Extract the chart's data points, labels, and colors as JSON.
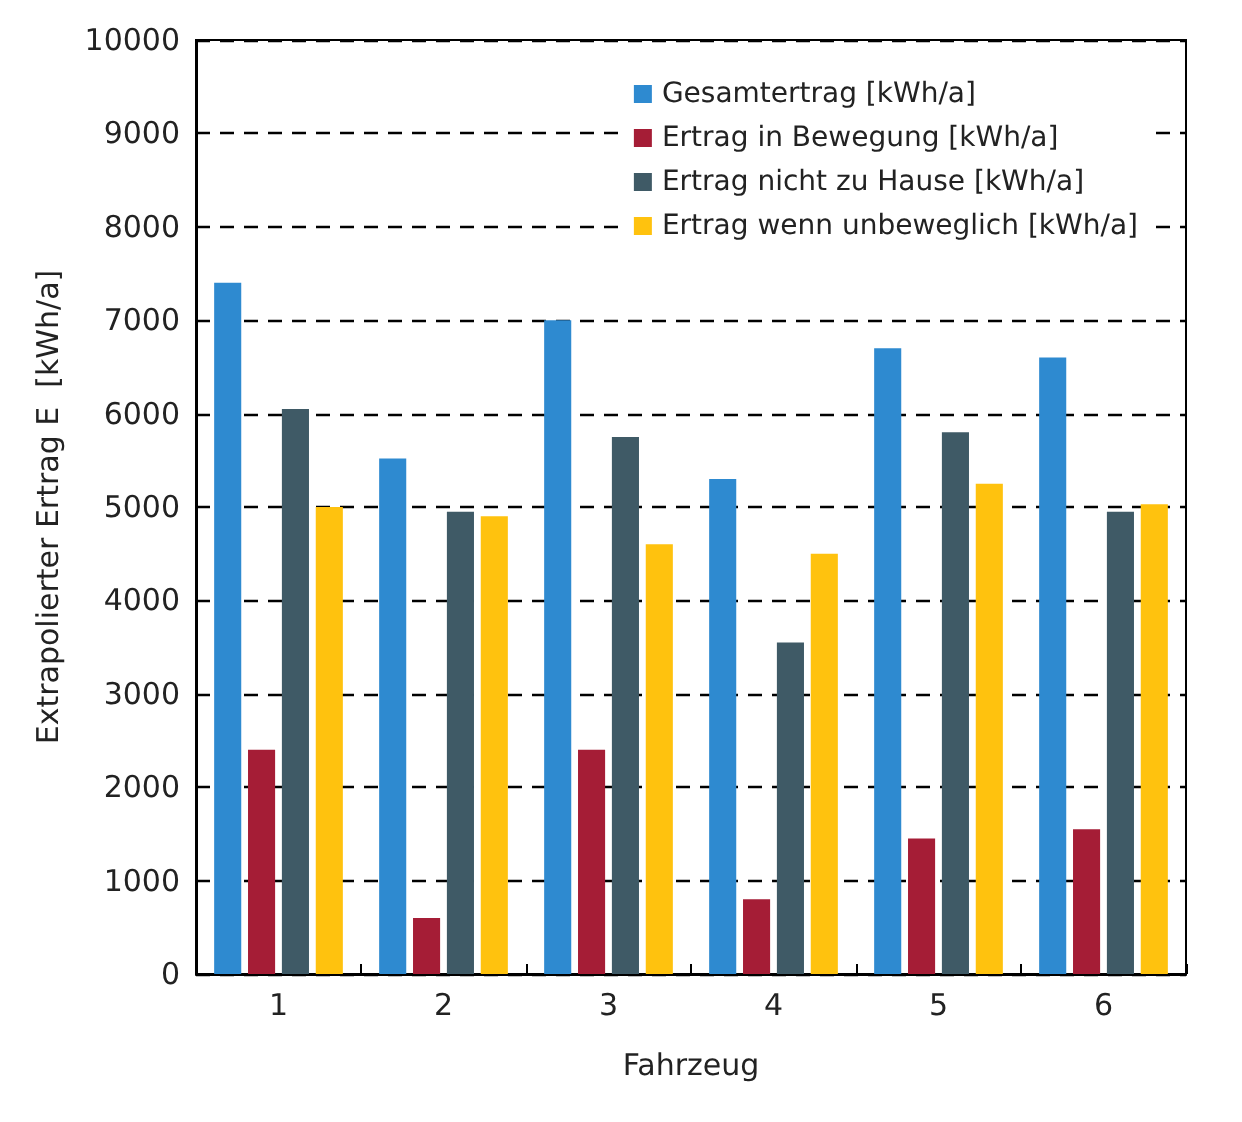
{
  "chart_data": {
    "type": "bar",
    "xlabel": "Fahrzeug",
    "ylabel": "Extrapolierter Ertrag E  [kWh/a]",
    "categories": [
      "1",
      "2",
      "3",
      "4",
      "5",
      "6"
    ],
    "series": [
      {
        "name": "Gesamtertrag [kWh/a]",
        "color": "#2e8ad0",
        "values": [
          7400,
          5520,
          7000,
          5300,
          6700,
          6600
        ]
      },
      {
        "name": "Ertrag in Bewegung [kWh/a]",
        "color": "#a51d36",
        "values": [
          2400,
          600,
          2400,
          800,
          1450,
          1550
        ]
      },
      {
        "name": "Ertrag nicht zu Hause [kWh/a]",
        "color": "#3f5a66",
        "values": [
          6050,
          4950,
          5750,
          3550,
          5800,
          4950
        ]
      },
      {
        "name": "Ertrag wenn unbeweglich [kWh/a]",
        "color": "#ffc20e",
        "values": [
          5000,
          4900,
          4600,
          4500,
          5250,
          5030
        ]
      }
    ],
    "ylim": [
      0,
      10000
    ],
    "yticks": [
      0,
      1000,
      2000,
      3000,
      4000,
      5000,
      6000,
      7000,
      8000,
      9000,
      10000
    ],
    "grid": "y",
    "legend": "top right"
  }
}
